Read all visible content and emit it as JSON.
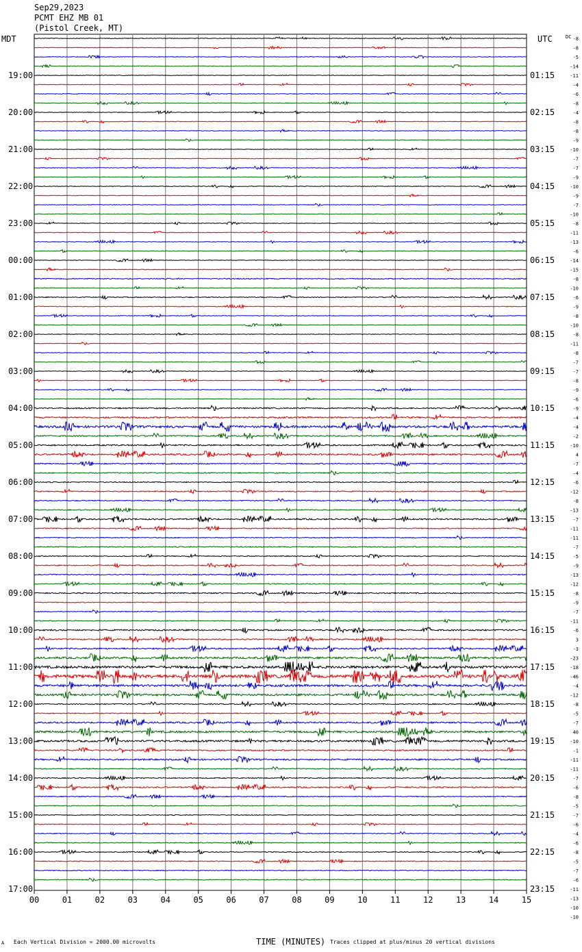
{
  "header": {
    "date": "Sep29,2023",
    "station": "PCMT EHZ MB 01",
    "location": "(Pistol Creek, MT)"
  },
  "labels": {
    "left_tz": "MDT",
    "right_tz": "UTC",
    "dc": "DC"
  },
  "footer": {
    "scale": "Each Vertical Division = 2000.00 microvolts",
    "xlabel": "TIME (MINUTES)",
    "clip": "Traces clipped at plus/minus 20 vertical divisions",
    "mark": "A"
  },
  "chart_data": {
    "type": "line",
    "title": "PCMT EHZ MB 01 (Pistol Creek, MT) Sep29,2023",
    "xlabel": "TIME (MINUTES)",
    "x_ticks": [
      "00",
      "01",
      "02",
      "03",
      "04",
      "05",
      "06",
      "07",
      "08",
      "09",
      "10",
      "11",
      "12",
      "13",
      "14",
      "15"
    ],
    "xlim": [
      0,
      15
    ],
    "grid": true,
    "trace_colors": [
      "#000000",
      "#dd0000",
      "#0000cc",
      "#006600"
    ],
    "traces_per_hour": 4,
    "minutes_per_trace": 15,
    "hours_left": [
      "19:00",
      "20:00",
      "21:00",
      "22:00",
      "23:00",
      "00:00",
      "01:00",
      "02:00",
      "03:00",
      "04:00",
      "05:00",
      "06:00",
      "07:00",
      "08:00",
      "09:00",
      "10:00",
      "11:00",
      "12:00",
      "13:00",
      "14:00",
      "15:00",
      "16:00",
      "17:00"
    ],
    "hours_right": [
      "01:15",
      "02:15",
      "03:15",
      "04:15",
      "05:15",
      "06:15",
      "07:15",
      "08:15",
      "09:15",
      "10:15",
      "11:15",
      "12:15",
      "13:15",
      "14:15",
      "15:15",
      "16:15",
      "17:15",
      "18:15",
      "19:15",
      "20:15",
      "21:15",
      "22:15",
      "23:15"
    ],
    "dc_offsets": [
      "-8",
      "-8",
      "-5",
      "-14",
      "-11",
      "-4",
      "-6",
      "-8",
      "-4",
      "-8",
      "-8",
      "-9",
      "-10",
      "-7",
      "-7",
      "-9",
      "-10",
      "-9",
      "-7",
      "-10",
      "-8",
      "-11",
      "-13",
      "-6",
      "-14",
      "-15",
      "-8",
      "-10",
      "-6",
      "-9",
      "-8",
      "-10",
      "-8",
      "-11",
      "-8",
      "-7",
      "-7",
      "-8",
      "-9",
      "-6",
      "-9",
      "-4",
      "-4",
      "-2",
      "-10",
      "4",
      "-7",
      "-4",
      "-6",
      "-12",
      "-8",
      "-13",
      "-7",
      "-11",
      "-11",
      "-7",
      "-5",
      "-9",
      "-13",
      "-12",
      "-8",
      "-9",
      "-7",
      "-11",
      "-6",
      "3",
      "-3",
      "-23",
      "-18",
      "-46",
      "-4",
      "-12",
      "-8",
      "-5",
      "-7",
      "40",
      "-10",
      "-1",
      "-11",
      "-11",
      "-7",
      "-6",
      "-8",
      "-5",
      "-7",
      "-6",
      "-4",
      "-6",
      "-8",
      "-5",
      "-7",
      "-6",
      "-11",
      "-13",
      "-10",
      "-10"
    ],
    "activity": [
      1,
      1,
      1,
      1,
      1,
      1,
      1.1,
      1,
      1,
      1,
      1,
      1,
      1,
      1,
      1,
      1,
      1,
      1,
      1,
      1,
      1,
      1,
      1,
      1,
      1,
      1.2,
      1.6,
      1,
      1.4,
      1.1,
      1,
      1,
      1,
      1,
      1,
      1,
      1,
      1,
      1,
      1,
      2,
      2.4,
      3.5,
      2,
      2.2,
      2.4,
      1.8,
      1.6,
      1.5,
      1.6,
      1.5,
      1.4,
      2.2,
      1.6,
      1.4,
      1.6,
      1.4,
      1.6,
      1.6,
      1.4,
      1.8,
      1.3,
      1.3,
      1.3,
      2.2,
      2,
      2.2,
      3,
      4,
      5,
      3.5,
      3.2,
      1.6,
      1.5,
      2.4,
      3.2,
      3,
      2,
      2.4,
      1.5,
      1.5,
      2,
      1.4,
      1.3,
      1.3,
      1.2,
      1.3,
      1.3,
      1.4,
      1.3,
      1.3,
      1.3,
      1.3,
      1.3,
      1.3,
      1.3
    ],
    "series": [
      {
        "values": [
          0
        ]
      }
    ]
  }
}
